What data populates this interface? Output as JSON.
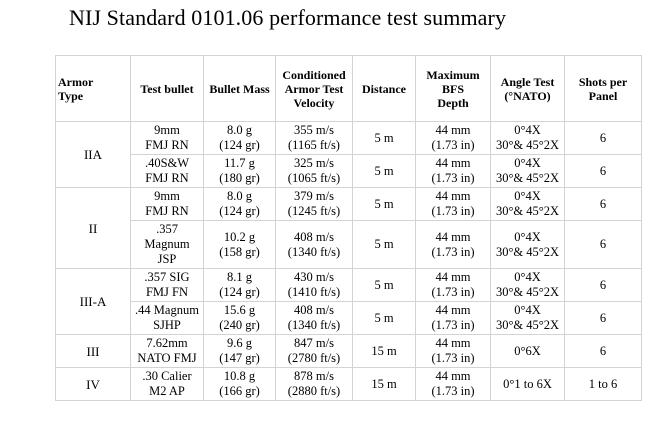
{
  "title": "NIJ Standard 0101.06 performance test summary",
  "headers": {
    "armor_type": "Armor\n  Type",
    "test_bullet": "Test bullet",
    "bullet_mass": "Bullet Mass",
    "conditioned": "Conditioned\nArmor Test\nVelocity",
    "distance": "Distance",
    "max_bfs": "Maximum\nBFS\nDepth",
    "angle_test": "Angle Test\n(°NATO)",
    "shots": "Shots per\nPanel"
  },
  "armor_types": [
    "IIA",
    "II",
    "III-A",
    "III",
    "IV"
  ],
  "rows": [
    {
      "bullet": "9mm\nFMJ RN",
      "mass": "8.0 g\n(124 gr)",
      "velocity": "355 m/s\n(1165 ft/s)",
      "distance": "5 m",
      "bfs": "44 mm\n(1.73 in)",
      "angle": "0°4X\n30°& 45°2X",
      "shots": "6"
    },
    {
      "bullet": ".40S&W\nFMJ RN",
      "mass": "11.7 g\n(180 gr)",
      "velocity": "325 m/s\n(1065 ft/s)",
      "distance": "5 m",
      "bfs": "44 mm\n(1.73 in)",
      "angle": "0°4X\n30°& 45°2X",
      "shots": "6"
    },
    {
      "bullet": "9mm\nFMJ RN",
      "mass": "8.0 g\n(124 gr)",
      "velocity": "379 m/s\n(1245 ft/s)",
      "distance": "5 m",
      "bfs": "44 mm\n(1.73 in)",
      "angle": "0°4X\n30°& 45°2X",
      "shots": "6"
    },
    {
      "bullet": ".357\nMagnum\nJSP",
      "mass": "10.2 g\n(158 gr)",
      "velocity": "408 m/s\n(1340 ft/s)",
      "distance": "5 m",
      "bfs": "44 mm\n(1.73 in)",
      "angle": "0°4X\n30°& 45°2X",
      "shots": "6"
    },
    {
      "bullet": ".357 SIG\nFMJ FN",
      "mass": "8.1 g\n(124 gr)",
      "velocity": "430 m/s\n(1410 ft/s)",
      "distance": "5 m",
      "bfs": "44 mm\n(1.73 in)",
      "angle": "0°4X\n30°& 45°2X",
      "shots": "6"
    },
    {
      "bullet": ".44 Magnum\nSJHP",
      "mass": "15.6 g\n(240 gr)",
      "velocity": "408 m/s\n(1340 ft/s)",
      "distance": "5 m",
      "bfs": "44 mm\n(1.73 in)",
      "angle": "0°4X\n30°& 45°2X",
      "shots": "6"
    },
    {
      "bullet": "7.62mm\nNATO FMJ",
      "mass": "9.6 g\n(147 gr)",
      "velocity": "847 m/s\n(2780 ft/s)",
      "distance": "15 m",
      "bfs": "44 mm\n(1.73 in)",
      "angle": "0°6X",
      "shots": "6"
    },
    {
      "bullet": ".30 Calier\nM2 AP",
      "mass": "10.8 g\n(166 gr)",
      "velocity": "878 m/s\n(2880 ft/s)",
      "distance": "15 m",
      "bfs": "44 mm\n(1.73 in)",
      "angle": "0°1 to 6X",
      "shots": "1 to 6"
    }
  ]
}
